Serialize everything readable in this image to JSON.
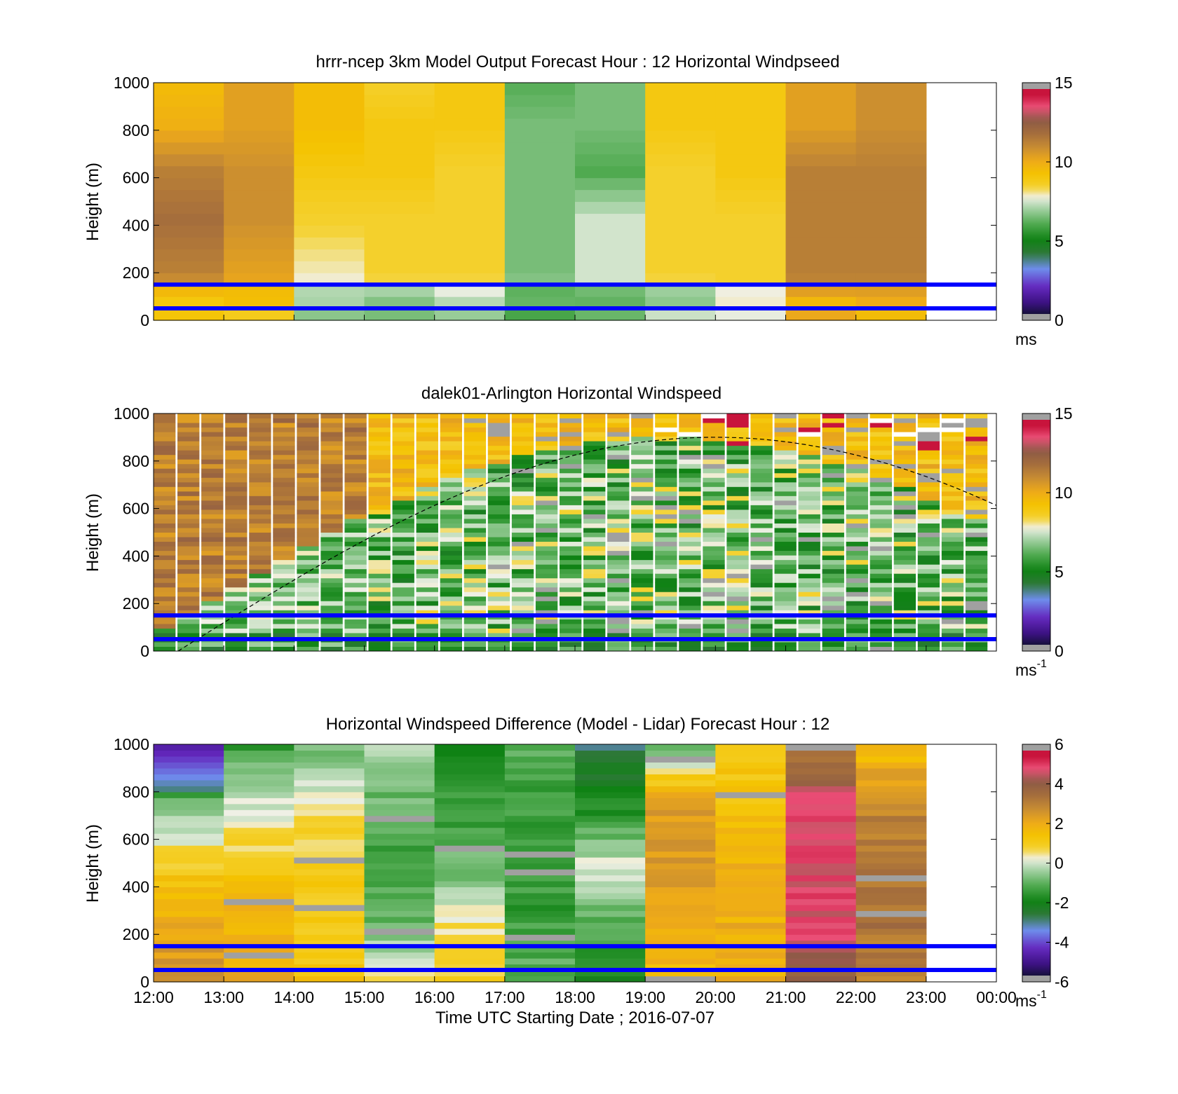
{
  "figure": {
    "xlabel": "Time UTC  Starting Date ; 2016-07-07",
    "x_tick_labels": [
      "12:00",
      "13:00",
      "14:00",
      "15:00",
      "16:00",
      "17:00",
      "18:00",
      "19:00",
      "20:00",
      "21:00",
      "22:00",
      "23:00",
      "00:00"
    ],
    "y_tick_labels": [
      "0",
      "200",
      "400",
      "600",
      "800",
      "1000"
    ],
    "blue_lines_height_m": [
      50,
      150
    ],
    "blue_line_color": "#0000ff"
  },
  "chart_data": [
    {
      "type": "heatmap",
      "title": "hrrr-ncep 3km Model Output   Forecast Hour : 12 Horizontal Windpseed",
      "ylabel": "Height (m)",
      "ylim": [
        0,
        1000
      ],
      "colorbar": {
        "ticks": [
          "0",
          "5",
          "10",
          "15"
        ],
        "unit": "ms",
        "unit_sup": "",
        "range": [
          0,
          15
        ]
      },
      "note_columns": "hourly, 12:00 to 23:00",
      "hours": [
        12,
        13,
        14,
        15,
        16,
        17,
        18,
        19,
        20,
        21,
        22
      ],
      "values_m_s": [
        [
          9.5,
          10.5,
          9.5,
          8.5,
          9.0,
          6.0,
          6.5,
          9.0,
          9.0,
          10.5,
          11.0
        ],
        [
          10.0,
          10.5,
          9.5,
          9.0,
          9.0,
          6.5,
          6.5,
          9.0,
          9.0,
          10.5,
          11.0
        ],
        [
          11.5,
          11.0,
          9.0,
          9.0,
          8.5,
          6.5,
          6.0,
          8.5,
          9.0,
          11.5,
          11.5
        ],
        [
          12.0,
          11.0,
          8.5,
          8.5,
          8.5,
          6.5,
          7.5,
          8.5,
          8.5,
          11.5,
          11.5
        ],
        [
          11.5,
          10.5,
          8.0,
          8.5,
          8.5,
          6.5,
          7.5,
          8.5,
          8.5,
          11.5,
          11.5
        ],
        [
          10.0,
          10.0,
          7.5,
          8.0,
          8.0,
          7.0,
          7.5,
          8.0,
          8.5,
          11.0,
          11.0
        ]
      ]
    },
    {
      "type": "heatmap",
      "title": "dalek01-Arlington  Horizontal Windspeed",
      "ylabel": "Height (m)",
      "ylim": [
        0,
        1000
      ],
      "colorbar": {
        "ticks": [
          "0",
          "5",
          "10",
          "15"
        ],
        "unit": "ms",
        "unit_sup": "-1",
        "range": [
          0,
          15
        ]
      },
      "note_columns": "20-minute profiles, 12:00 to 23:40",
      "dashed_curve": "boundary-layer height estimate peaking near 900 m at 20:00"
    },
    {
      "type": "heatmap",
      "title": "Horizontal Windspeed Difference (Model - Lidar) Forecast Hour : 12",
      "ylabel": "Height (m)",
      "ylim": [
        0,
        1000
      ],
      "colorbar": {
        "ticks": [
          "-6",
          "-4",
          "-2",
          "0",
          "2",
          "4",
          "6"
        ],
        "unit": "ms",
        "unit_sup": "-1",
        "range": [
          -6,
          6
        ]
      },
      "note_columns": "hourly, 12:00 to 23:00",
      "hours": [
        12,
        13,
        14,
        15,
        16,
        17,
        18,
        19,
        20,
        21,
        22
      ]
    }
  ]
}
